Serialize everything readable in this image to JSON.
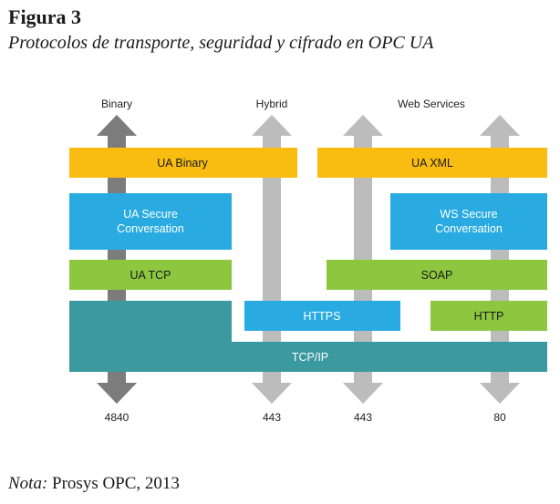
{
  "figure": {
    "title": "Figura 3",
    "subtitle": "Protocolos de transporte, seguridad y cifrado en OPC UA"
  },
  "columns": {
    "binary": "Binary",
    "hybrid": "Hybrid",
    "web_services": "Web Services"
  },
  "ports": {
    "p4840": "4840",
    "p443a": "443",
    "p443b": "443",
    "p80": "80"
  },
  "layers": {
    "ua_binary": "UA Binary",
    "ua_xml": "UA XML",
    "ua_secure_line1": "UA Secure",
    "ua_secure_line2": "Conversation",
    "ws_secure_line1": "WS Secure",
    "ws_secure_line2": "Conversation",
    "ua_tcp": "UA TCP",
    "soap": "SOAP",
    "https": "HTTPS",
    "http": "HTTP",
    "tcpip": "TCP/IP"
  },
  "note": {
    "label": "Nota:",
    "text": " Prosys OPC, 2013"
  },
  "colors": {
    "yellow": "#f9bd12",
    "blue": "#29abe2",
    "green": "#8dc63f",
    "teal": "#3a9aa0",
    "arrow_dark": "#7c7c7c",
    "arrow_light": "#bcbcbc"
  }
}
